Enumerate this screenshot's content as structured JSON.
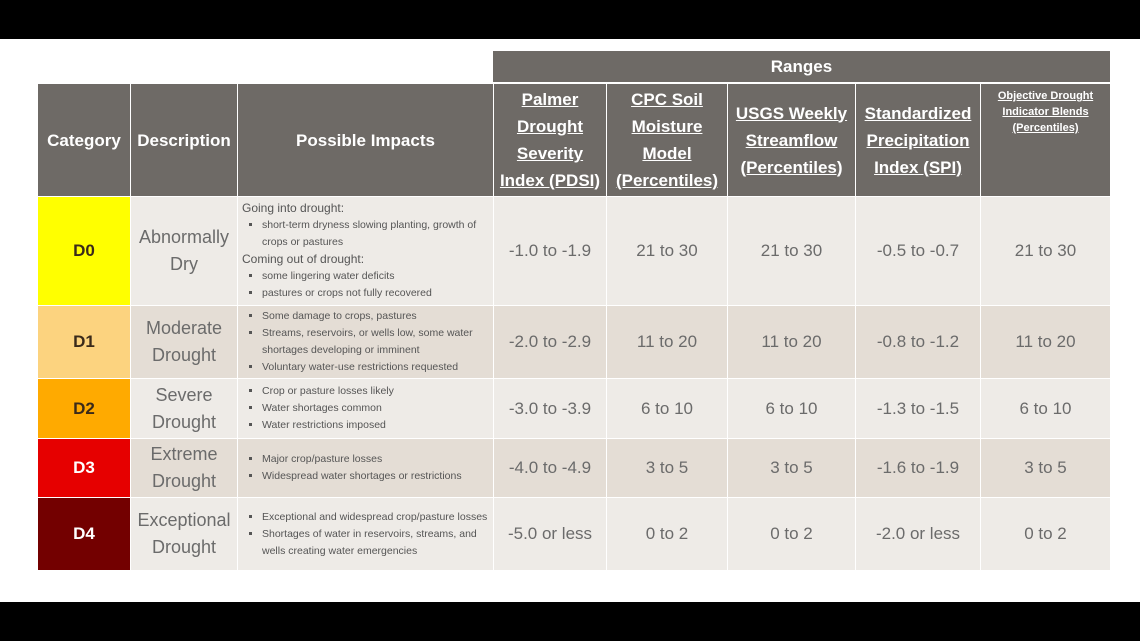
{
  "header": {
    "ranges": "Ranges",
    "columns": [
      "Category",
      "Description",
      "Possible Impacts",
      "Palmer Drought Severity Index (PDSI)",
      "CPC Soil Moisture Model (Percentiles)",
      "USGS Weekly Streamflow (Percentiles)",
      "Standardized Precipitation Index (SPI)",
      "Objective Drought Indicator Blends (Percentiles)"
    ]
  },
  "rows": [
    {
      "category": "D0",
      "color": "#ffff00",
      "description": "Abnormally Dry",
      "impacts_going_label": "Going into drought:",
      "impacts_going": [
        "short-term dryness slowing planting, growth of crops or pastures"
      ],
      "impacts_coming_label": "Coming out of drought:",
      "impacts_coming": [
        "some lingering water deficits",
        "pastures or crops not fully recovered"
      ],
      "pdsi": "-1.0 to -1.9",
      "cpc": "21 to 30",
      "usgs": "21 to 30",
      "spi": "-0.5 to -0.7",
      "blend": "21 to 30"
    },
    {
      "category": "D1",
      "color": "#fcd37f",
      "description": "Moderate Drought",
      "impacts": [
        "Some damage to crops, pastures",
        "Streams, reservoirs, or wells low, some water shortages developing or imminent",
        "Voluntary water-use restrictions requested"
      ],
      "pdsi": "-2.0 to -2.9",
      "cpc": "11 to 20",
      "usgs": "11 to 20",
      "spi": "-0.8 to -1.2",
      "blend": "11 to 20"
    },
    {
      "category": "D2",
      "color": "#ffaa00",
      "description": "Severe Drought",
      "impacts": [
        "Crop or pasture losses likely",
        "Water shortages common",
        "Water restrictions imposed"
      ],
      "pdsi": "-3.0 to -3.9",
      "cpc": "6 to 10",
      "usgs": "6 to 10",
      "spi": "-1.3 to -1.5",
      "blend": "6 to 10"
    },
    {
      "category": "D3",
      "color": "#e60000",
      "description": "Extreme Drought",
      "impacts": [
        "Major crop/pasture losses",
        "Widespread water shortages or restrictions"
      ],
      "pdsi": "-4.0 to -4.9",
      "cpc": "3 to 5",
      "usgs": "3 to 5",
      "spi": "-1.6 to -1.9",
      "blend": "3 to 5"
    },
    {
      "category": "D4",
      "color": "#730000",
      "description": "Exceptional Drought",
      "impacts": [
        "Exceptional and widespread crop/pasture losses",
        "Shortages of water in reservoirs, streams, and wells creating water emergencies"
      ],
      "pdsi": "-5.0 or less",
      "cpc": "0 to 2",
      "usgs": "0 to 2",
      "spi": "-2.0 or less",
      "blend": "0 to 2"
    }
  ]
}
